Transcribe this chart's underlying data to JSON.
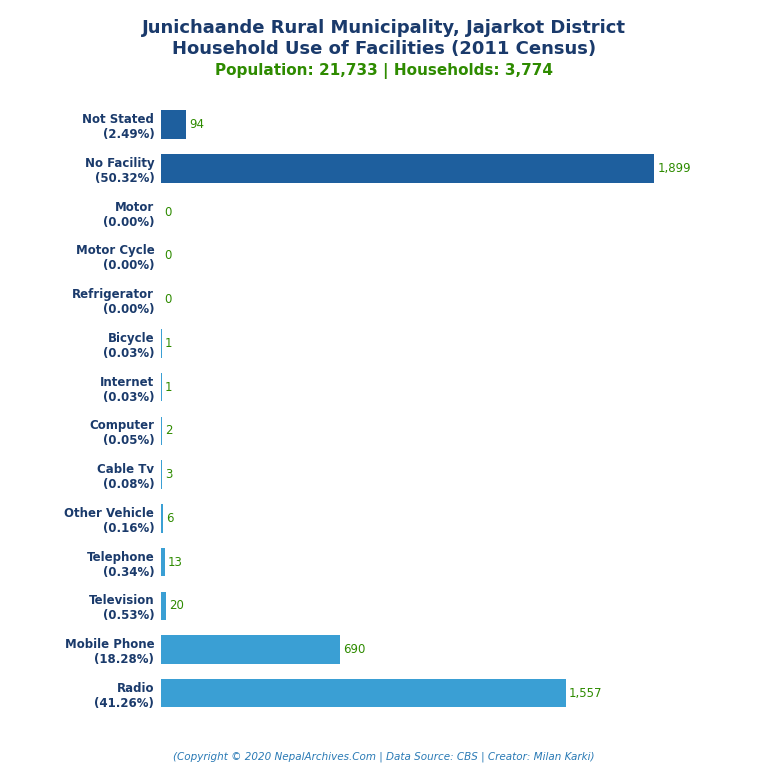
{
  "title_line1": "Junichaande Rural Municipality, Jajarkot District",
  "title_line2": "Household Use of Facilities (2011 Census)",
  "subtitle": "Population: 21,733 | Households: 3,774",
  "subtitle_color": "#2e8b00",
  "title_color": "#1a3a6b",
  "copyright": "(Copyright © 2020 NepalArchives.Com | Data Source: CBS | Creator: Milan Karki)",
  "categories": [
    "Not Stated\n(2.49%)",
    "No Facility\n(50.32%)",
    "Motor\n(0.00%)",
    "Motor Cycle\n(0.00%)",
    "Refrigerator\n(0.00%)",
    "Bicycle\n(0.03%)",
    "Internet\n(0.03%)",
    "Computer\n(0.05%)",
    "Cable Tv\n(0.08%)",
    "Other Vehicle\n(0.16%)",
    "Telephone\n(0.34%)",
    "Television\n(0.53%)",
    "Mobile Phone\n(18.28%)",
    "Radio\n(41.26%)"
  ],
  "values": [
    94,
    1899,
    0,
    0,
    0,
    1,
    1,
    2,
    3,
    6,
    13,
    20,
    690,
    1557
  ],
  "bar_color_dark": "#1e5f9e",
  "bar_color_light": "#3a9fd4",
  "value_color": "#2e8b00",
  "background_color": "#ffffff",
  "xlim": [
    0,
    2100
  ]
}
